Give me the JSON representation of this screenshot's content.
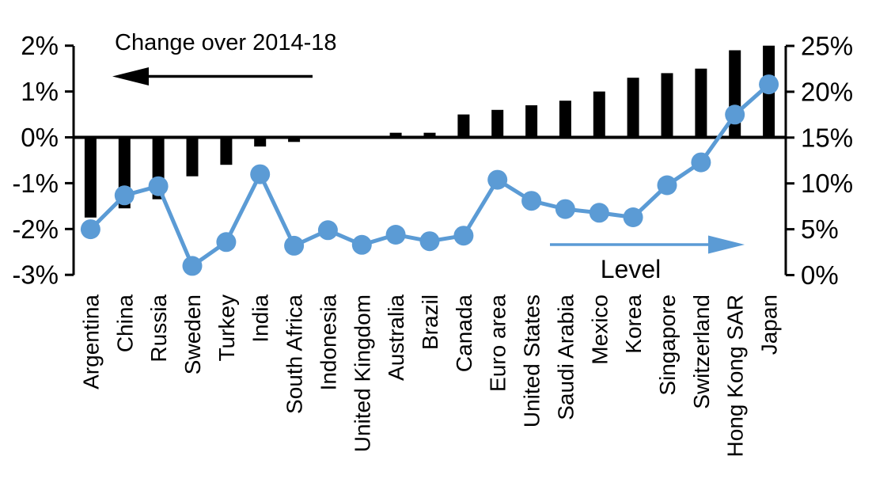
{
  "chart_data": {
    "type": "bar",
    "subtype": "combo-bar-line-dual-axis",
    "title": "",
    "categories": [
      "Argentina",
      "China",
      "Russia",
      "Sweden",
      "Turkey",
      "India",
      "South Africa",
      "Indonesia",
      "United Kingdom",
      "Australia",
      "Brazil",
      "Canada",
      "Euro area",
      "United States",
      "Saudi Arabia",
      "Mexico",
      "Korea",
      "Singapore",
      "Switzerland",
      "Hong Kong SAR",
      "Japan"
    ],
    "series": [
      {
        "name": "Change over 2014-18",
        "type": "bar",
        "axis": "left",
        "color": "#000000",
        "values": [
          -1.75,
          -1.55,
          -1.35,
          -0.85,
          -0.6,
          -0.2,
          -0.1,
          0,
          0,
          0.1,
          0.1,
          0.5,
          0.6,
          0.7,
          0.8,
          1.0,
          1.3,
          1.4,
          1.5,
          1.9,
          2.0
        ]
      },
      {
        "name": "Level",
        "type": "line",
        "axis": "right",
        "color": "#5B9BD5",
        "values": [
          5.0,
          8.7,
          9.7,
          1.0,
          3.6,
          11.0,
          3.2,
          4.9,
          3.3,
          4.4,
          3.7,
          4.3,
          10.4,
          8.1,
          7.2,
          6.8,
          6.3,
          9.8,
          12.3,
          17.5,
          20.8
        ]
      }
    ],
    "left_axis": {
      "min": -3,
      "max": 2,
      "tick_step": 1,
      "tick_labels": [
        "2%",
        "1%",
        "0%",
        "-1%",
        "-2%",
        "-3%"
      ],
      "unit": "%"
    },
    "right_axis": {
      "min": 0,
      "max": 25,
      "tick_step": 5,
      "tick_labels": [
        "25%",
        "20%",
        "15%",
        "10%",
        "5%",
        "0%"
      ],
      "unit": "%"
    },
    "grid": false,
    "legend_position": "in-plot-annotations",
    "annotations": {
      "bar_series_label": {
        "text": "Change over 2014-18",
        "arrow": "left",
        "color": "#000000"
      },
      "line_series_label": {
        "text": "Level",
        "arrow": "right",
        "color": "#5B9BD5"
      }
    },
    "xlabel": "",
    "ylabel_left": "Change over 2014-18",
    "ylabel_right": "Level"
  },
  "colors": {
    "bar": "#000000",
    "line": "#5B9BD5",
    "text": "#000000",
    "background": "#ffffff"
  }
}
